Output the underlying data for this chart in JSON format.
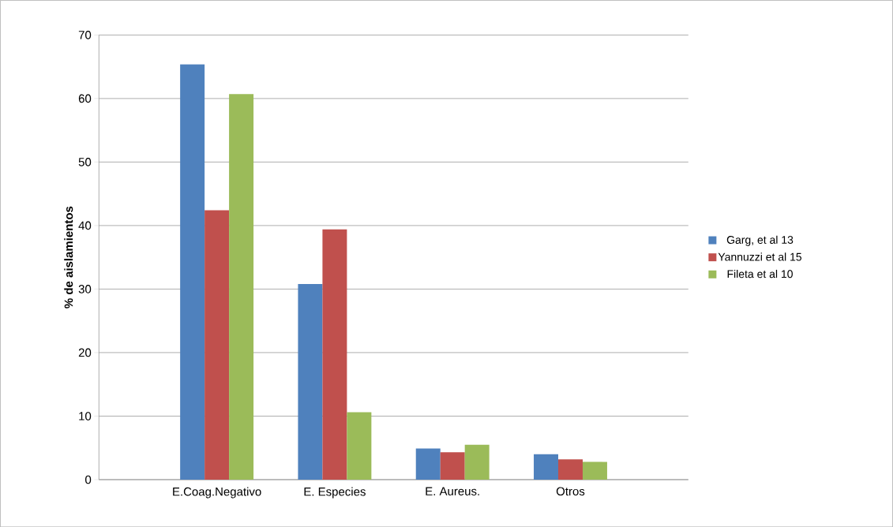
{
  "chart_data": {
    "type": "bar",
    "ylabel": "% de aislamientos",
    "categories": [
      "E.Coag.Negativo",
      "E. Especies",
      "E. Aureus.",
      "Otros"
    ],
    "series": [
      {
        "name": "Garg, et al 13",
        "color": "#4f81bd",
        "values": [
          65.4,
          30.8,
          4.9,
          4.0
        ]
      },
      {
        "name": "Yannuzzi et al 15",
        "color": "#c0504d",
        "values": [
          42.4,
          39.4,
          4.3,
          3.2
        ]
      },
      {
        "name": "Fileta et al 10",
        "color": "#9bbb59",
        "values": [
          60.7,
          10.6,
          5.5,
          2.8
        ]
      }
    ],
    "ylim": [
      0,
      70
    ],
    "yticks": [
      0,
      10,
      20,
      30,
      40,
      50,
      60,
      70
    ],
    "grid": "y",
    "legend": "right"
  }
}
